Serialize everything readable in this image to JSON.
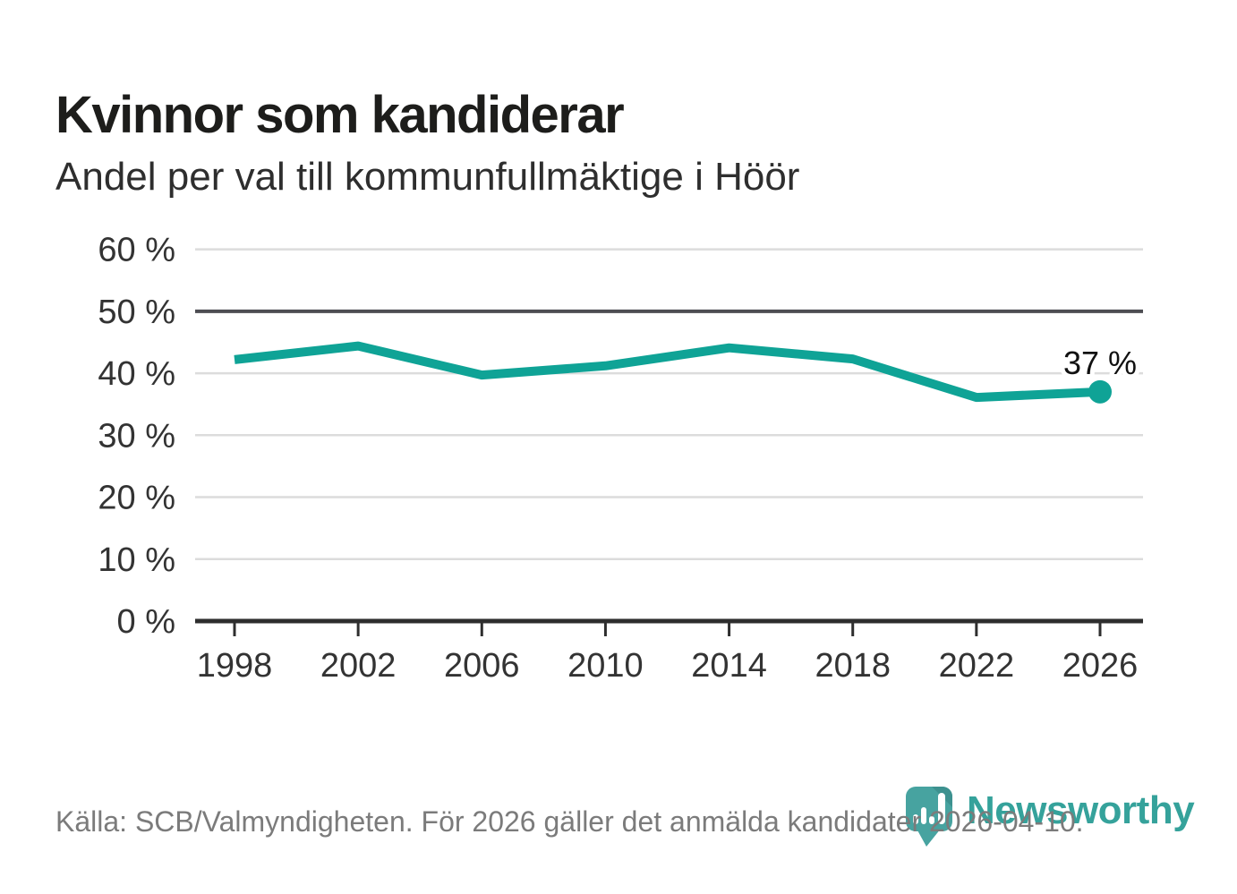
{
  "title": "Kvinnor som kandiderar",
  "subtitle": "Andel per val till kommunfullmäktige i Höör",
  "footer": {
    "source": "Källa: SCB/Valmyndigheten. För 2026 gäller det anmälda kandidater 2026-04-10."
  },
  "logo": {
    "text": "Newsworthy",
    "icon": "newsworthy-speech-bubble-bar-chart-icon"
  },
  "colors": {
    "line": "#0fa396",
    "marker": "#0fa396",
    "logo_teal": "#47a3a0",
    "logo_text_teal": "#35a29b",
    "grid_light": "#dcdcdc",
    "reference_line": "#4d4d52",
    "axis": "#2e2e2e",
    "tick_label": "#333333",
    "annotation": "#111111",
    "footer_text": "#7b7b7b"
  },
  "chart_data": {
    "type": "line",
    "title": "Kvinnor som kandiderar",
    "subtitle": "Andel per val till kommunfullmäktige i Höör",
    "x": [
      1998,
      2002,
      2006,
      2010,
      2014,
      2018,
      2022,
      2026
    ],
    "series": [
      {
        "name": "",
        "values": [
          42.2,
          44.4,
          39.7,
          41.2,
          44.1,
          42.3,
          36.1,
          37
        ]
      }
    ],
    "end_label": "37 %",
    "xlabel": "",
    "ylabel": "",
    "yticks": [
      0,
      10,
      20,
      30,
      40,
      50,
      60
    ],
    "ytick_suffix": " %",
    "ylim": [
      0,
      62
    ],
    "xlim": [
      1998,
      2026
    ],
    "reference_line": 50,
    "grid": true,
    "legend": "none",
    "last_point_marker": true
  }
}
